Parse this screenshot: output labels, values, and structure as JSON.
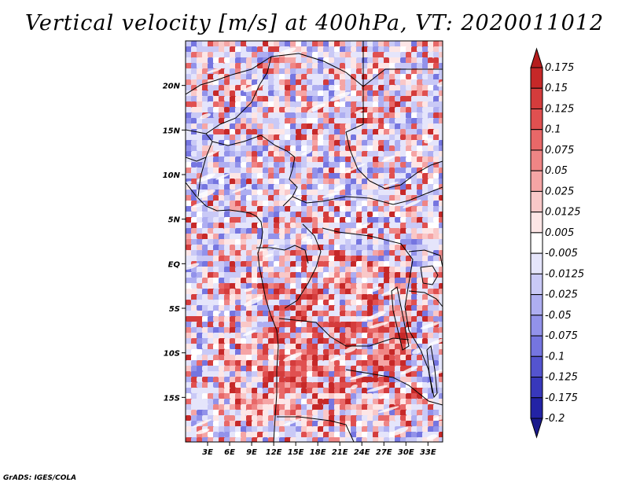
{
  "title": "Vertical velocity [m/s] at 400hPa, VT: 2020011012",
  "credit": "GrADS: IGES/COLA",
  "map": {
    "lon_range": [
      0,
      35
    ],
    "lat_range": [
      -20,
      25
    ],
    "lat_ticks": [
      {
        "value": 20,
        "label": "20N"
      },
      {
        "value": 15,
        "label": "15N"
      },
      {
        "value": 10,
        "label": "10N"
      },
      {
        "value": 5,
        "label": "5N"
      },
      {
        "value": 0,
        "label": "EQ"
      },
      {
        "value": -5,
        "label": "5S"
      },
      {
        "value": -10,
        "label": "10S"
      },
      {
        "value": -15,
        "label": "15S"
      }
    ],
    "lon_ticks": [
      {
        "value": 3,
        "label": "3E"
      },
      {
        "value": 6,
        "label": "6E"
      },
      {
        "value": 9,
        "label": "9E"
      },
      {
        "value": 12,
        "label": "12E"
      },
      {
        "value": 15,
        "label": "15E"
      },
      {
        "value": 18,
        "label": "18E"
      },
      {
        "value": 21,
        "label": "21E"
      },
      {
        "value": 24,
        "label": "24E"
      },
      {
        "value": 27,
        "label": "27E"
      },
      {
        "value": 30,
        "label": "30E"
      },
      {
        "value": 33,
        "label": "33E"
      }
    ]
  },
  "colorbar": {
    "levels": [
      "0.175",
      "0.15",
      "0.125",
      "0.1",
      "0.075",
      "0.05",
      "0.025",
      "0.0125",
      "0.005",
      "-0.005",
      "-0.0125",
      "-0.025",
      "-0.05",
      "-0.075",
      "-0.1",
      "-0.125",
      "-0.175",
      "-0.2"
    ],
    "colors": [
      "#b51d1d",
      "#c62828",
      "#d43c3c",
      "#e05050",
      "#e86868",
      "#ef8585",
      "#f5a5a5",
      "#f9c8c8",
      "#fde6e6",
      "#ffffff",
      "#e5e5fb",
      "#c9c9f6",
      "#aeaef1",
      "#9292ea",
      "#7575e0",
      "#5454cf",
      "#3838bb",
      "#2323a5",
      "#1a1a8c"
    ]
  }
}
